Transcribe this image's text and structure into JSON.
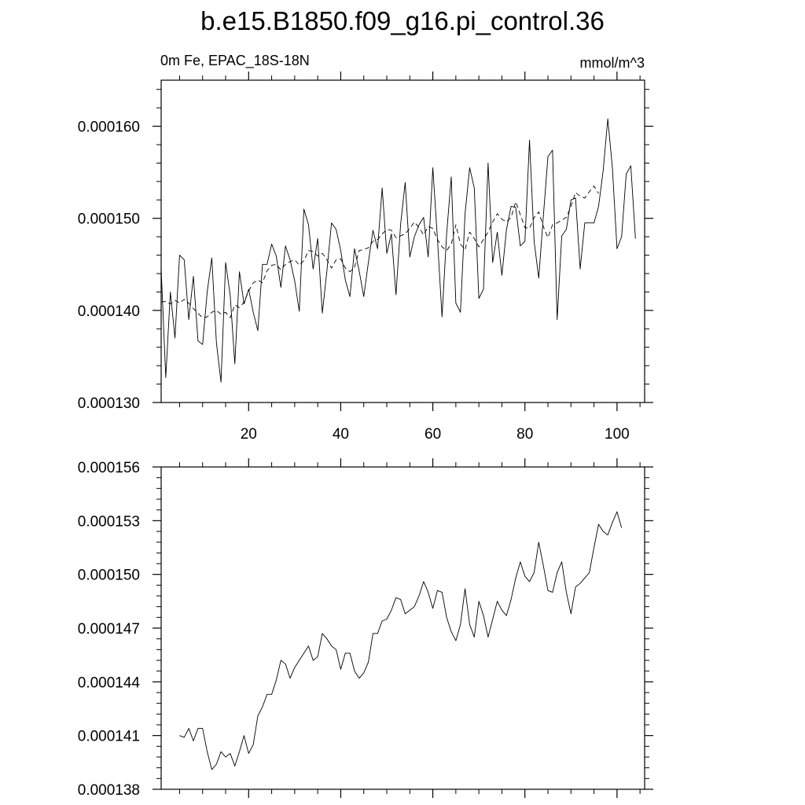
{
  "title": "b.e15.B1850.f09_g16.pi_control.36",
  "chart_data": [
    {
      "type": "line",
      "left_label": "0m Fe, EPAC_18S-18N",
      "right_label": "mmol/m^3",
      "xlim": [
        1,
        106
      ],
      "ylim": [
        0.00013,
        0.000165
      ],
      "x_ticks": [
        20,
        40,
        60,
        80,
        100
      ],
      "x_tick_labels": [
        "20",
        "40",
        "60",
        "80",
        "100"
      ],
      "y_ticks": [
        0.00013,
        0.00014,
        0.00015,
        0.00016
      ],
      "y_tick_labels": [
        "0.000130",
        "0.000140",
        "0.000150",
        "0.000160"
      ],
      "series": [
        {
          "style": "solid",
          "x_start": 1,
          "values": [
            0.0001445,
            0.0001327,
            0.000142,
            0.000137,
            0.000146,
            0.0001455,
            0.000139,
            0.0001437,
            0.0001367,
            0.0001363,
            0.000142,
            0.0001457,
            0.0001365,
            0.0001322,
            0.0001452,
            0.0001416,
            0.0001342,
            0.0001442,
            0.0001407,
            0.0001423,
            0.0001398,
            0.0001378,
            0.000145,
            0.000145,
            0.0001472,
            0.0001459,
            0.0001425,
            0.000147,
            0.0001455,
            0.0001432,
            0.0001399,
            0.000151,
            0.0001493,
            0.0001445,
            0.0001478,
            0.0001397,
            0.0001443,
            0.0001495,
            0.0001488,
            0.0001465,
            0.0001433,
            0.0001415,
            0.0001467,
            0.0001443,
            0.0001415,
            0.0001452,
            0.0001487,
            0.0001467,
            0.0001533,
            0.0001462,
            0.0001483,
            0.0001417,
            0.0001493,
            0.0001539,
            0.0001458,
            0.000148,
            0.0001493,
            0.0001501,
            0.0001458,
            0.0001555,
            0.0001478,
            0.0001393,
            0.0001483,
            0.0001545,
            0.0001408,
            0.0001398,
            0.0001505,
            0.0001555,
            0.0001533,
            0.0001413,
            0.0001423,
            0.000156,
            0.0001452,
            0.0001485,
            0.0001438,
            0.0001488,
            0.0001513,
            0.0001512,
            0.000147,
            0.0001475,
            0.0001585,
            0.0001475,
            0.0001435,
            0.0001502,
            0.0001567,
            0.0001574,
            0.000139,
            0.0001481,
            0.0001488,
            0.000152,
            0.0001522,
            0.0001445,
            0.0001495,
            0.0001495,
            0.0001495,
            0.0001513,
            0.0001552,
            0.0001608,
            0.0001555,
            0.0001467,
            0.000148,
            0.0001548,
            0.0001557,
            0.0001478
          ]
        },
        {
          "style": "dashed",
          "x_start": 1,
          "values": [
            0.0001409,
            0.000141,
            0.0001407,
            0.0001411,
            0.0001408,
            0.0001412,
            0.0001408,
            0.0001402,
            0.0001397,
            0.0001392,
            0.0001393,
            0.0001398,
            0.00014,
            0.0001396,
            0.0001398,
            0.0001392,
            0.0001406,
            0.0001403,
            0.0001409,
            0.0001421,
            0.000143,
            0.0001433,
            0.000143,
            0.0001443,
            0.0001449,
            0.000145,
            0.0001444,
            0.000145,
            0.0001453,
            0.0001455,
            0.0001449,
            0.0001454,
            0.0001465,
            0.0001464,
            0.0001459,
            0.0001462,
            0.0001455,
            0.0001446,
            0.0001455,
            0.0001456,
            0.0001446,
            0.0001442,
            0.0001447,
            0.0001465,
            0.0001466,
            0.0001468,
            0.0001475,
            0.0001477,
            0.0001483,
            0.0001488,
            0.0001487,
            0.0001479,
            0.0001481,
            0.0001483,
            0.0001489,
            0.0001496,
            0.000149,
            0.0001482,
            0.0001491,
            0.0001489,
            0.0001477,
            0.0001469,
            0.0001465,
            0.0001472,
            0.0001493,
            0.0001472,
            0.0001466,
            0.0001485,
            0.0001478,
            0.0001469,
            0.0001477,
            0.0001485,
            0.0001496,
            0.0001505,
            0.0001499,
            0.0001496,
            0.0001501,
            0.0001518,
            0.0001504,
            0.000149,
            0.0001489,
            0.0001501,
            0.0001507,
            0.0001491,
            0.0001479,
            0.0001493,
            0.0001495,
            0.0001498,
            0.0001501,
            0.0001513,
            0.0001528,
            0.0001524,
            0.0001522,
            0.0001529,
            0.0001535,
            0.0001527
          ]
        }
      ]
    },
    {
      "type": "line",
      "xlim": [
        1,
        106
      ],
      "ylim": [
        0.000138,
        0.000156
      ],
      "x_ticks": [
        20,
        40,
        60,
        80,
        100
      ],
      "y_ticks": [
        0.000138,
        0.000141,
        0.000144,
        0.000147,
        0.00015,
        0.000153,
        0.000156
      ],
      "y_tick_labels": [
        "0.000138",
        "0.000141",
        "0.000144",
        "0.000147",
        "0.000150",
        "0.000153",
        "0.000156"
      ],
      "series": [
        {
          "style": "solid",
          "x_start": 5,
          "values": [
            0.000141,
            0.0001409,
            0.0001414,
            0.0001407,
            0.0001414,
            0.0001414,
            0.0001401,
            0.0001391,
            0.0001394,
            0.0001401,
            0.0001398,
            0.00014,
            0.0001393,
            0.0001401,
            0.000141,
            0.00014,
            0.0001405,
            0.0001421,
            0.0001426,
            0.0001433,
            0.0001433,
            0.0001441,
            0.0001452,
            0.000145,
            0.0001442,
            0.0001448,
            0.0001452,
            0.0001456,
            0.000146,
            0.0001452,
            0.0001454,
            0.0001467,
            0.0001464,
            0.000146,
            0.0001458,
            0.0001447,
            0.0001456,
            0.0001456,
            0.0001446,
            0.0001442,
            0.0001445,
            0.0001451,
            0.0001467,
            0.0001467,
            0.0001474,
            0.0001475,
            0.000148,
            0.0001487,
            0.0001486,
            0.0001478,
            0.000148,
            0.0001482,
            0.0001488,
            0.0001496,
            0.000149,
            0.0001481,
            0.0001491,
            0.000149,
            0.0001476,
            0.0001468,
            0.0001463,
            0.0001472,
            0.0001492,
            0.0001472,
            0.0001465,
            0.0001485,
            0.0001477,
            0.0001465,
            0.0001475,
            0.0001485,
            0.000148,
            0.0001477,
            0.0001486,
            0.0001498,
            0.0001507,
            0.0001499,
            0.0001496,
            0.0001501,
            0.0001518,
            0.0001505,
            0.0001491,
            0.000149,
            0.0001501,
            0.0001507,
            0.000149,
            0.0001478,
            0.0001493,
            0.0001495,
            0.0001498,
            0.0001501,
            0.0001515,
            0.0001528,
            0.0001524,
            0.0001522,
            0.0001529,
            0.0001535,
            0.0001526
          ]
        }
      ]
    }
  ]
}
